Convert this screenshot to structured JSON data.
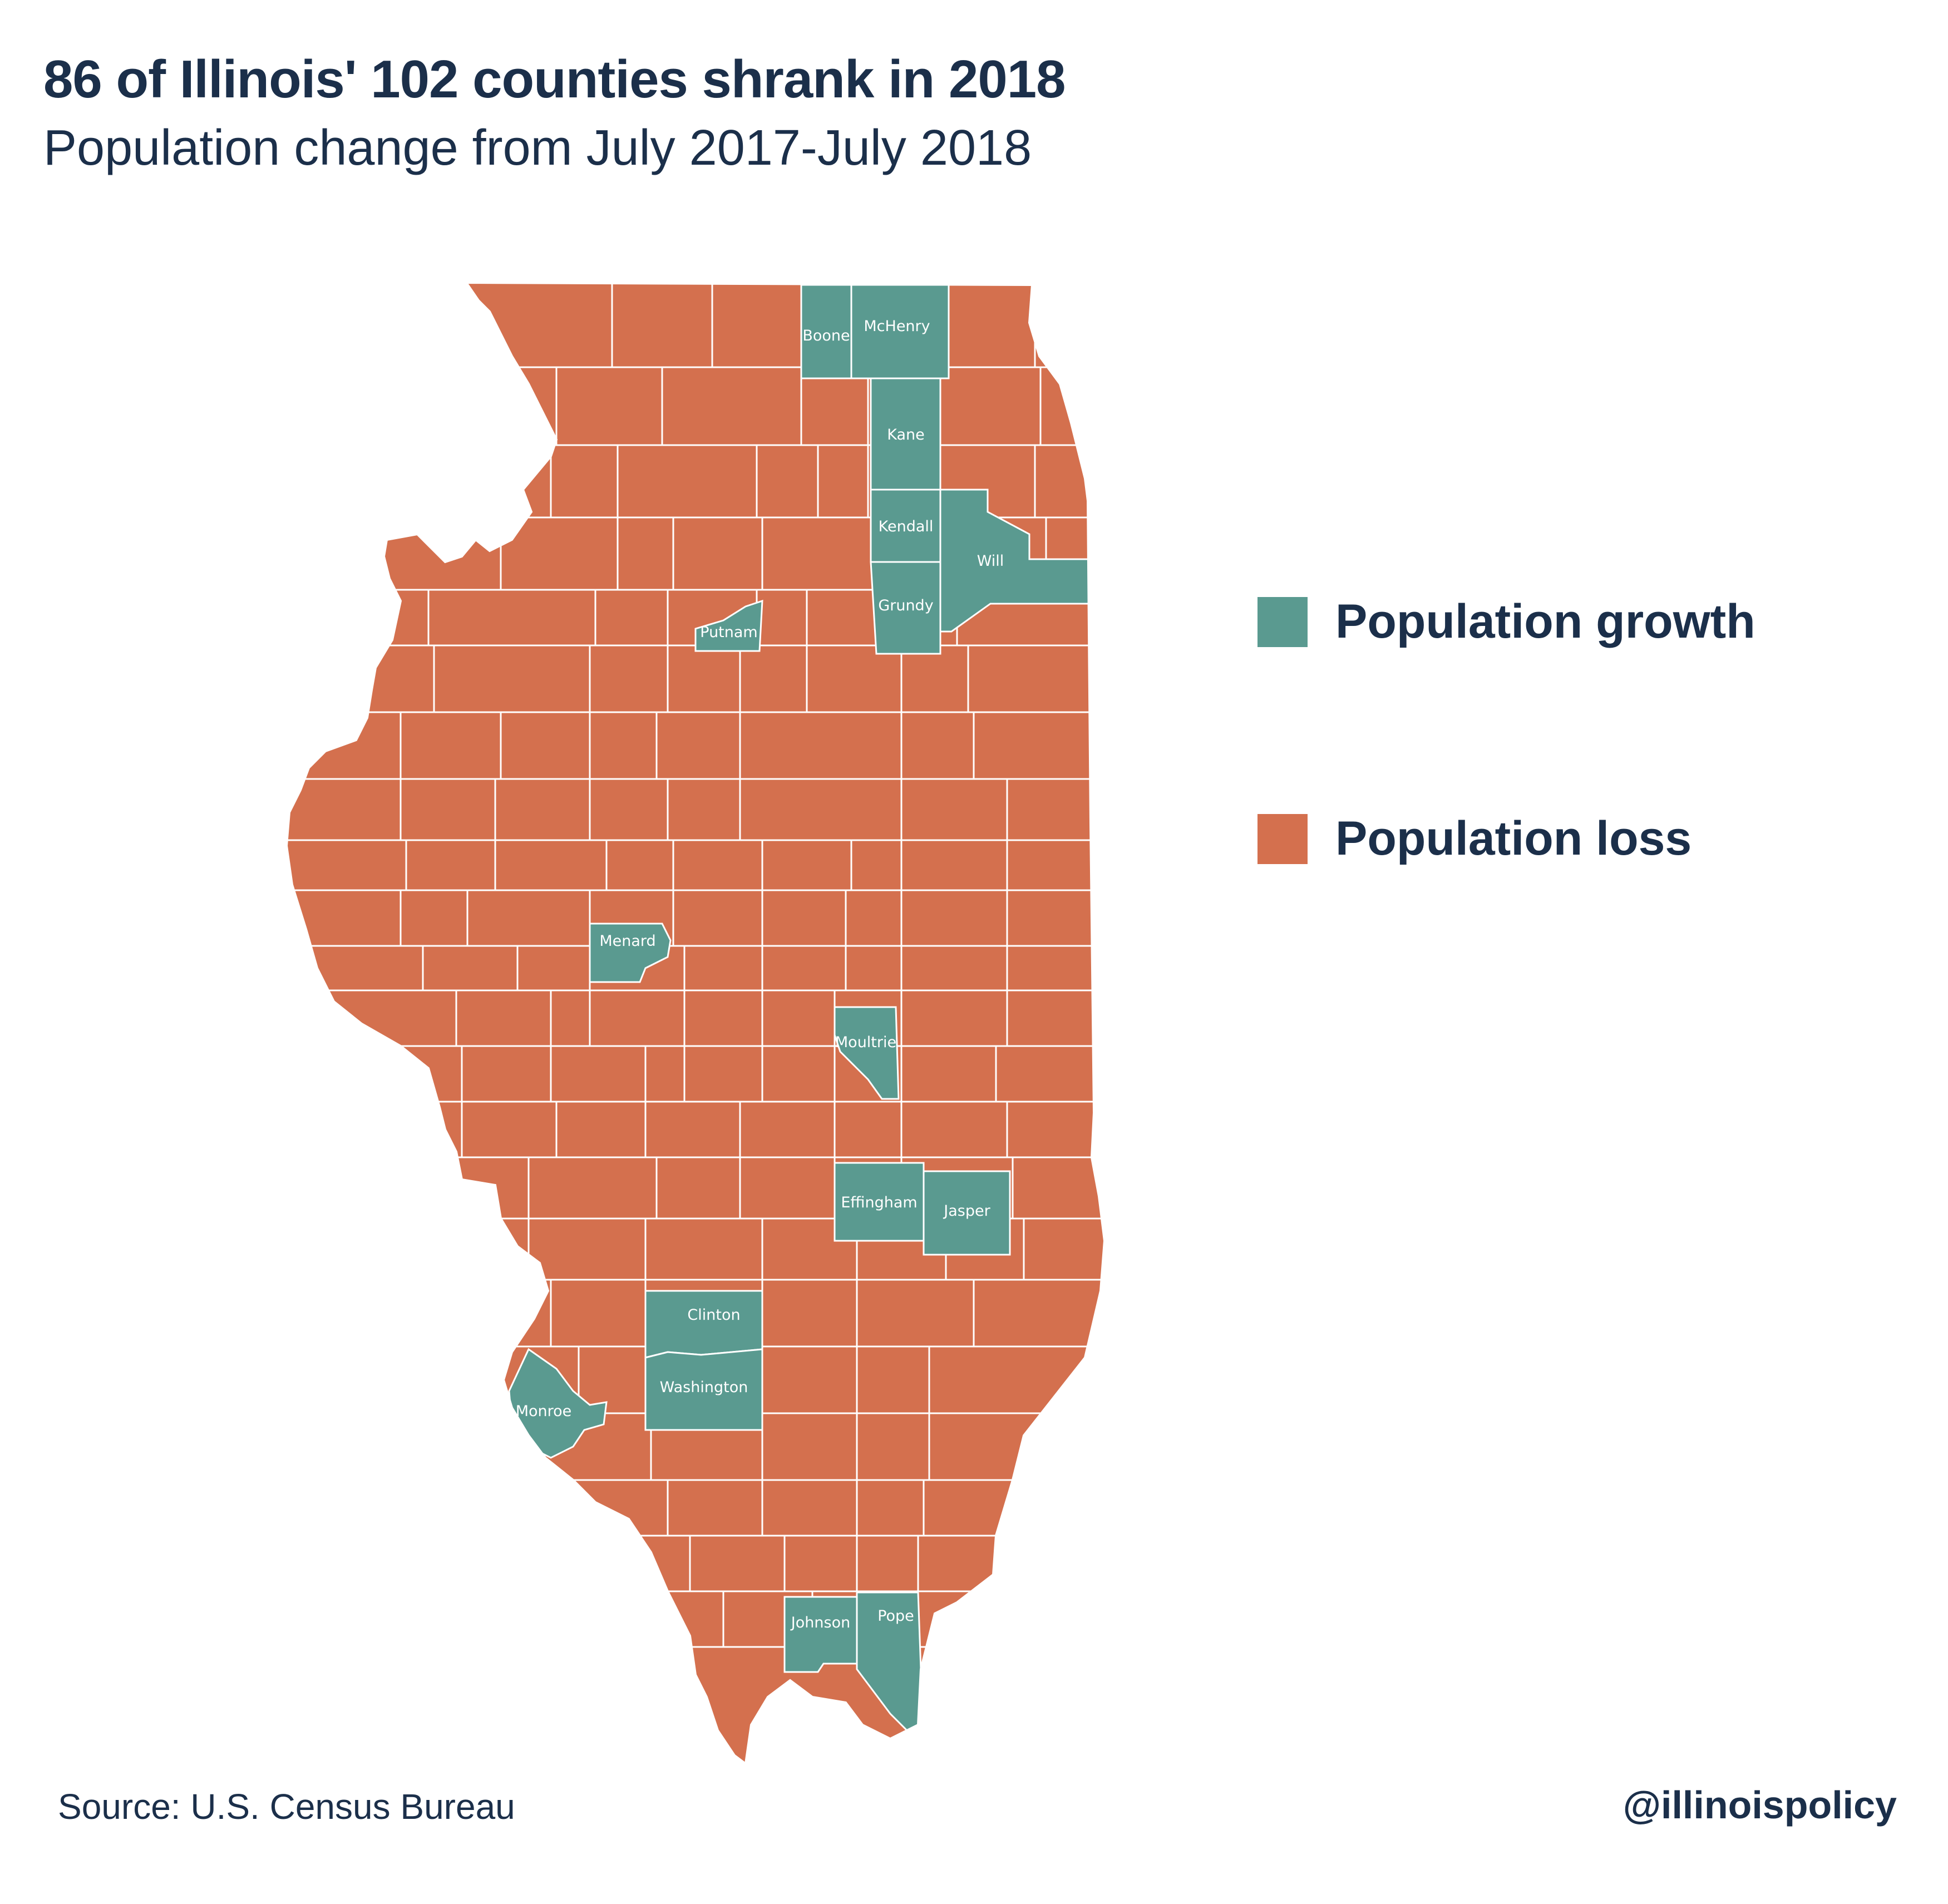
{
  "title": "86 of Illinois' 102 counties shrank in 2018",
  "subtitle": "Population change from July 2017-July 2018",
  "colors": {
    "growth": "#5a9a90",
    "loss": "#d4704e",
    "border": "#ffffff",
    "text": "#1b2f4a"
  },
  "legend": {
    "growth_label": "Population growth",
    "loss_label": "Population loss"
  },
  "growth_counties": [
    "Boone",
    "McHenry",
    "Kane",
    "Kendall",
    "Will",
    "Grundy",
    "Putnam",
    "Menard",
    "Moultrie",
    "Effingham",
    "Jasper",
    "Clinton",
    "Washington",
    "Monroe",
    "Johnson",
    "Pope"
  ],
  "source": "Source: U.S. Census Bureau",
  "handle": "@illinoispolicy"
}
